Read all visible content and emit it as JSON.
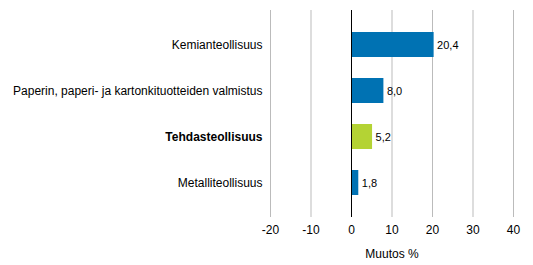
{
  "chart_data": {
    "type": "bar",
    "orientation": "horizontal",
    "categories": [
      "Kemianteollisuus",
      "Paperin, paperi- ja kartonkituotteiden valmistus",
      "Tehdasteollisuus",
      "Metalliteollisuus"
    ],
    "values": [
      20.4,
      8.0,
      5.2,
      1.8
    ],
    "value_labels": [
      "20,4",
      "8,0",
      "5,2",
      "1,8"
    ],
    "colors": [
      "#0072b3",
      "#0072b3",
      "#b4d334",
      "#0072b3"
    ],
    "xlabel": "Muutos %",
    "xlim": [
      -20,
      40
    ],
    "xticks": [
      -20,
      -10,
      0,
      10,
      20,
      30,
      40
    ],
    "grid": true,
    "data_labels": true
  }
}
